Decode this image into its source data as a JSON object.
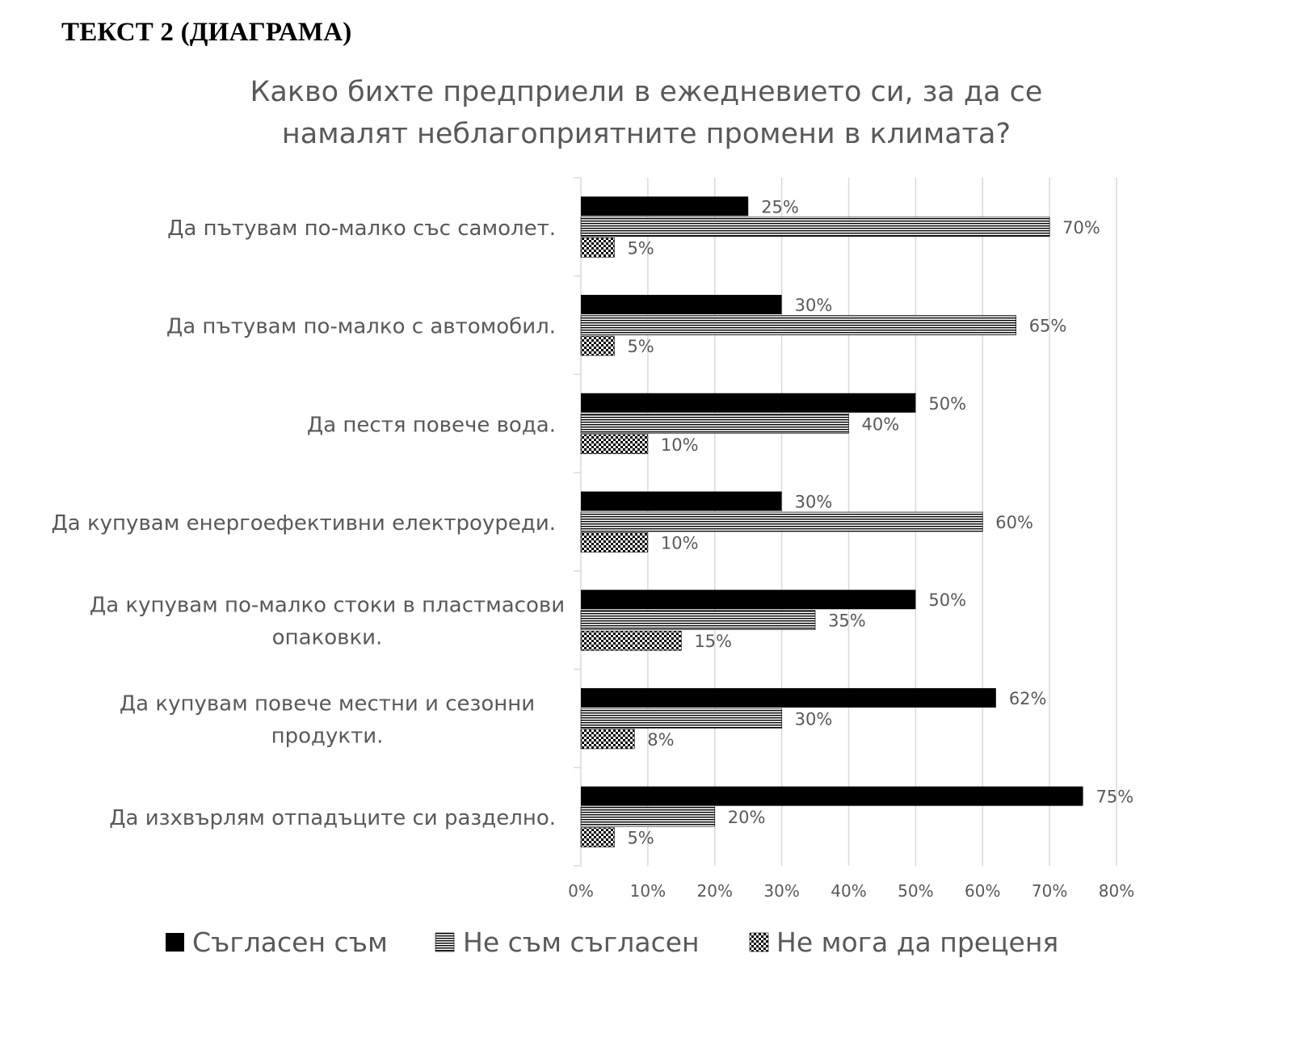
{
  "heading": "ТЕКСТ 2 (ДИАГРАМА)",
  "chart_data": {
    "type": "bar",
    "orientation": "horizontal",
    "title_lines": [
      "Какво бихте предприели в ежедневието си, за да се",
      "намалят неблагоприятните промени в климата?"
    ],
    "categories": [
      [
        "Да пътувам по-малко със самолет."
      ],
      [
        "Да пътувам по-малко с автомобил."
      ],
      [
        "Да пестя повече вода."
      ],
      [
        "Да купувам енергоефективни електроуреди."
      ],
      [
        "Да купувам по-малко стоки в пластмасови",
        "опаковки."
      ],
      [
        "Да купувам повече местни и сезонни",
        "продукти."
      ],
      [
        "Да изхвърлям отпадъците си разделно."
      ]
    ],
    "series": [
      {
        "name": "Съгласен съм",
        "pattern": "solid",
        "values": [
          25,
          30,
          50,
          30,
          50,
          62,
          75
        ],
        "labels": [
          "25%",
          "30%",
          "50%",
          "30%",
          "50%",
          "62%",
          "75%"
        ]
      },
      {
        "name": "Не съм съгласен",
        "pattern": "horizontal-stripes",
        "values": [
          70,
          65,
          40,
          60,
          35,
          30,
          20
        ],
        "labels": [
          "70%",
          "65%",
          "40%",
          "60%",
          "35%",
          "30%",
          "20%"
        ]
      },
      {
        "name": "Не мога да преценя",
        "pattern": "checker",
        "values": [
          5,
          5,
          10,
          10,
          15,
          8,
          5
        ],
        "labels": [
          "5%",
          "5%",
          "10%",
          "10%",
          "15%",
          "8%",
          "5%"
        ]
      }
    ],
    "xlim": [
      0,
      80
    ],
    "xticks": [
      "0%",
      "10%",
      "20%",
      "30%",
      "40%",
      "50%",
      "60%",
      "70%",
      "80%"
    ],
    "grid": true,
    "legend_position": "bottom",
    "colors": {
      "bar": "#000000",
      "text": "#595959",
      "grid": "#d9d9d9"
    }
  }
}
